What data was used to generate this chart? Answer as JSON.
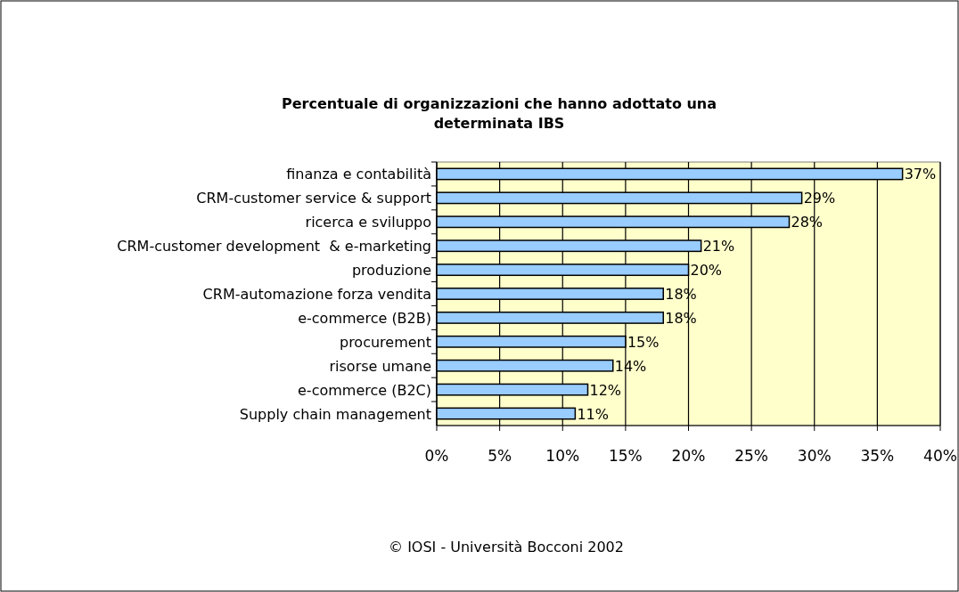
{
  "chart_data": {
    "type": "bar",
    "orientation": "horizontal",
    "title": "Percentuale di organizzazioni che hanno adottato una determinata IBS",
    "categories": [
      "finanza e contabilità",
      "CRM-customer service & support",
      "ricerca e sviluppo",
      "CRM-customer development  & e-marketing",
      "produzione",
      "CRM-automazione forza vendita",
      "e-commerce (B2B)",
      "procurement",
      "risorse umane",
      "e-commerce (B2C)",
      "Supply chain management"
    ],
    "values": [
      37,
      29,
      28,
      21,
      20,
      18,
      18,
      15,
      14,
      12,
      11
    ],
    "value_labels": [
      "37%",
      "29%",
      "28%",
      "21%",
      "20%",
      "18%",
      "18%",
      "15%",
      "14%",
      "12%",
      "11%"
    ],
    "color": "#99ccff",
    "xlim": [
      0,
      40
    ],
    "xticks": [
      {
        "value": 0,
        "label": "0%"
      },
      {
        "value": 5,
        "label": "5%"
      },
      {
        "value": 10,
        "label": "10%"
      },
      {
        "value": 15,
        "label": "15%"
      },
      {
        "value": 20,
        "label": "20%"
      },
      {
        "value": 25,
        "label": "25%"
      },
      {
        "value": 30,
        "label": "30%"
      },
      {
        "value": 35,
        "label": "35%"
      },
      {
        "value": 40,
        "label": "40%"
      }
    ],
    "grid": "x",
    "annotations": [
      "© IOSI - Università Bocconi 2002"
    ]
  }
}
